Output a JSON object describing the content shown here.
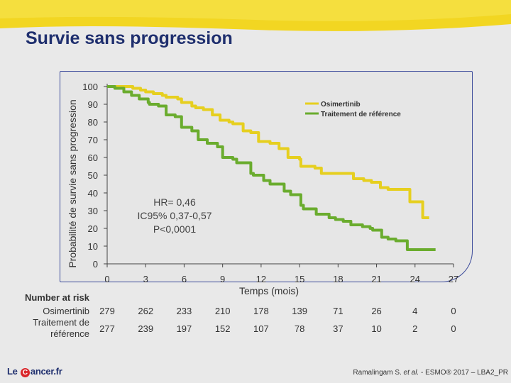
{
  "slide": {
    "title": "Survie sans progression"
  },
  "footer": {
    "logo_text_before": "Le ",
    "logo_letter": "C",
    "logo_text_after": "ancer.fr",
    "citation_authors": "Ramalingam S. ",
    "citation_etal": "et al.",
    "citation_rest": " - ESMO® 2017 – LBA2_PR"
  },
  "colors": {
    "osimertinib": "#e6cf1f",
    "reference": "#6aac2e",
    "title": "#1f2f6e",
    "frame": "#3b4a9a"
  },
  "chart_data": {
    "type": "line",
    "title": "Survie sans progression",
    "xlabel": "Temps (mois)",
    "ylabel": "Probabilité de survie sans progression",
    "xlim": [
      0,
      27
    ],
    "ylim": [
      0,
      100
    ],
    "xticks": [
      0,
      3,
      6,
      9,
      12,
      15,
      18,
      21,
      24,
      27
    ],
    "yticks": [
      0,
      10,
      20,
      30,
      40,
      50,
      60,
      70,
      80,
      90,
      100
    ],
    "grid": false,
    "legend_position": "top-right",
    "series": [
      {
        "name": "Osimertinib",
        "x": [
          0,
          1,
          1.4,
          2,
          2.6,
          3,
          3.6,
          4.3,
          4.6,
          5.5,
          5.8,
          6.6,
          6.9,
          7.5,
          8.2,
          8.8,
          9.5,
          9.8,
          10.6,
          11.2,
          11.8,
          12.7,
          13.4,
          14.1,
          15,
          15.1,
          16.2,
          16.7,
          17.8,
          19.2,
          20,
          20.6,
          21.3,
          21.9,
          23.4,
          23.6,
          24.3,
          24.4,
          24.6,
          25.1
        ],
        "y": [
          100,
          100,
          100,
          99,
          98,
          97,
          96,
          95,
          94,
          93,
          91,
          89,
          88,
          87,
          84,
          81,
          80,
          79,
          75,
          74,
          69,
          68,
          65,
          60,
          59,
          55,
          54,
          51,
          51,
          48,
          47,
          46,
          43,
          42,
          42,
          35,
          35,
          35,
          26,
          26
        ]
      },
      {
        "name": "Traitement de référence",
        "x": [
          0,
          0.6,
          1.3,
          1.9,
          2.5,
          3.2,
          3.3,
          4,
          4.6,
          5.3,
          5.8,
          6.6,
          7.1,
          7.8,
          8.6,
          9,
          9.8,
          10.1,
          11.2,
          11.4,
          12.2,
          12.7,
          13.8,
          14.3,
          15.1,
          15.3,
          16.3,
          17.3,
          17.8,
          18.4,
          19,
          19.9,
          20.5,
          20.7,
          21.4,
          21.9,
          22.5,
          23,
          23.4,
          24.3,
          25.6
        ],
        "y": [
          100,
          99,
          97,
          95,
          93,
          91,
          90,
          89,
          84,
          83,
          77,
          75,
          70,
          68,
          66,
          60,
          59,
          57,
          51,
          50,
          47,
          45,
          41,
          39,
          33,
          31,
          28,
          26,
          25,
          24,
          22,
          21,
          20,
          19,
          15,
          14,
          13,
          13,
          8,
          8,
          8
        ]
      }
    ],
    "annotations": [
      "HR= 0,46",
      "IC95% 0,37-0,57",
      "P<0,0001"
    ],
    "risk_table": {
      "title": "Number at risk",
      "times": [
        0,
        3,
        6,
        9,
        12,
        15,
        18,
        21,
        24,
        27
      ],
      "rows": [
        {
          "label": "Osimertinib",
          "values": [
            279,
            262,
            233,
            210,
            178,
            139,
            71,
            26,
            4,
            0
          ]
        },
        {
          "label_line1": "Traitement de",
          "label_line2": "référence",
          "values": [
            277,
            239,
            197,
            152,
            107,
            78,
            37,
            10,
            2,
            0
          ]
        }
      ]
    }
  }
}
